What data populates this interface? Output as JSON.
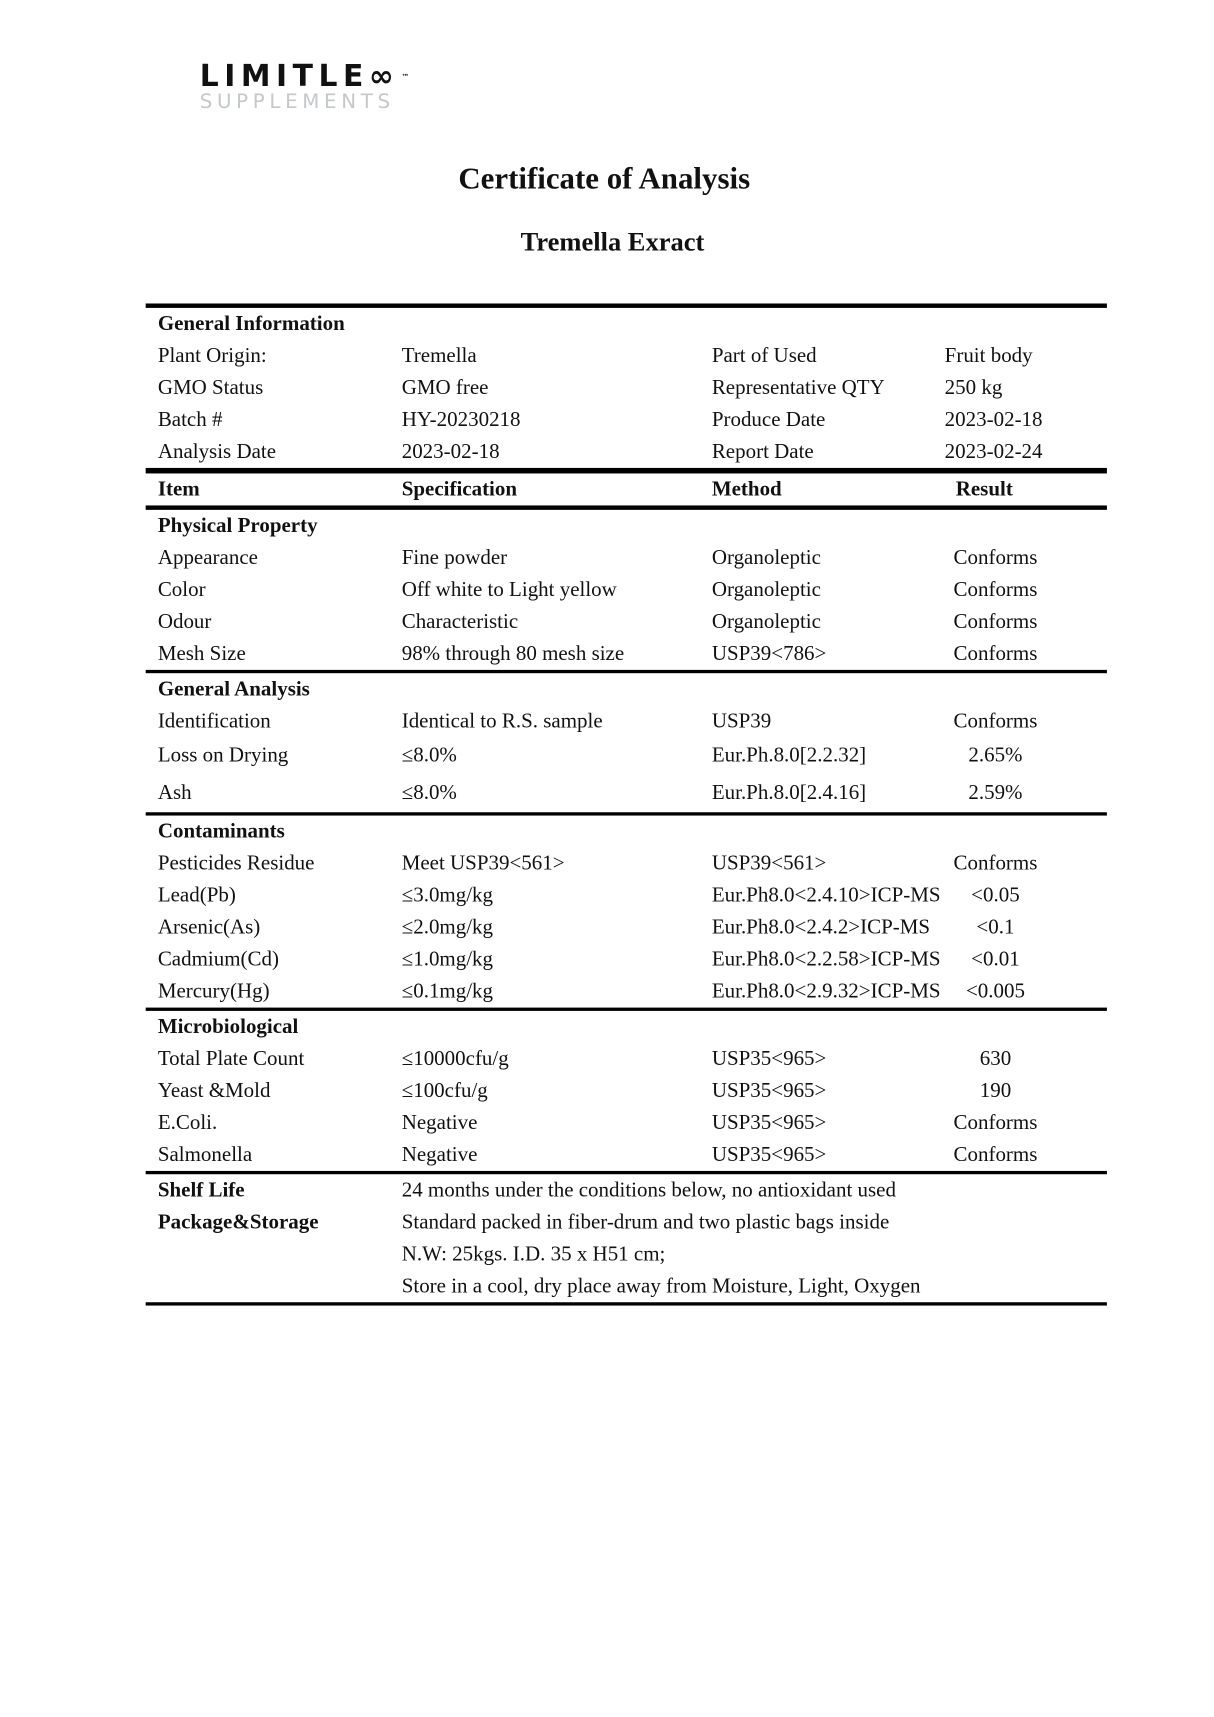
{
  "logo": {
    "line1": "LIMITLE∞",
    "tm": "™",
    "line2": "SUPPLEMENTS"
  },
  "title": "Certificate of Analysis",
  "subtitle": "Tremella Exract",
  "general_information": {
    "heading": "General Information",
    "rows": [
      [
        "Plant Origin:",
        "Tremella",
        "Part of Used",
        "Fruit body"
      ],
      [
        "GMO Status",
        "GMO free",
        "Representative QTY",
        "250 kg"
      ],
      [
        "Batch #",
        "HY-20230218",
        "Produce Date",
        "2023-02-18"
      ],
      [
        "Analysis Date",
        "2023-02-18",
        "Report Date",
        "2023-02-24"
      ]
    ]
  },
  "columns": [
    "Item",
    "Specification",
    "Method",
    "Result"
  ],
  "sections": [
    {
      "heading": "Physical Property",
      "rows": [
        [
          "Appearance",
          "Fine powder",
          "Organoleptic",
          "Conforms"
        ],
        [
          "Color",
          "Off white to Light yellow",
          "Organoleptic",
          "Conforms"
        ],
        [
          "Odour",
          "Characteristic",
          "Organoleptic",
          "Conforms"
        ],
        [
          "Mesh Size",
          "98% through 80 mesh size",
          "USP39<786>",
          "Conforms"
        ]
      ]
    },
    {
      "heading": "General Analysis",
      "rows": [
        [
          "Identification",
          "Identical to R.S. sample",
          "USP39",
          "Conforms"
        ],
        [
          "Loss on Drying",
          "≤8.0%",
          "Eur.Ph.8.0[2.2.32]",
          "2.65%"
        ],
        [
          "Ash",
          "≤8.0%",
          "Eur.Ph.8.0[2.4.16]",
          "2.59%"
        ]
      ]
    },
    {
      "heading": "Contaminants",
      "rows": [
        [
          "Pesticides Residue",
          "Meet USP39<561>",
          "USP39<561>",
          "Conforms"
        ],
        [
          "Lead(Pb)",
          "≤3.0mg/kg",
          "Eur.Ph8.0<2.4.10>ICP-MS",
          "<0.05"
        ],
        [
          "Arsenic(As)",
          "≤2.0mg/kg",
          "Eur.Ph8.0<2.4.2>ICP-MS",
          "<0.1"
        ],
        [
          "Cadmium(Cd)",
          "≤1.0mg/kg",
          "Eur.Ph8.0<2.2.58>ICP-MS",
          "<0.01"
        ],
        [
          "Mercury(Hg)",
          "≤0.1mg/kg",
          "Eur.Ph8.0<2.9.32>ICP-MS",
          "<0.005"
        ]
      ]
    },
    {
      "heading": "Microbiological",
      "rows": [
        [
          "Total Plate Count",
          "≤10000cfu/g",
          "USP35<965>",
          "630"
        ],
        [
          "Yeast &Mold",
          "≤100cfu/g",
          "USP35<965>",
          "190"
        ],
        [
          "E.Coli.",
          "Negative",
          "USP35<965>",
          "Conforms"
        ],
        [
          "Salmonella",
          "Negative",
          "USP35<965>",
          "Conforms"
        ]
      ]
    }
  ],
  "footer": {
    "shelf_life_label": "Shelf Life",
    "shelf_life": "24 months under the conditions below, no antioxidant used",
    "storage_label": "Package&Storage",
    "storage_lines": [
      "Standard packed in fiber-drum and two plastic bags inside",
      "N.W: 25kgs. I.D. 35 x H51 cm;",
      "Store in a cool, dry place away from Moisture, Light, Oxygen"
    ]
  }
}
